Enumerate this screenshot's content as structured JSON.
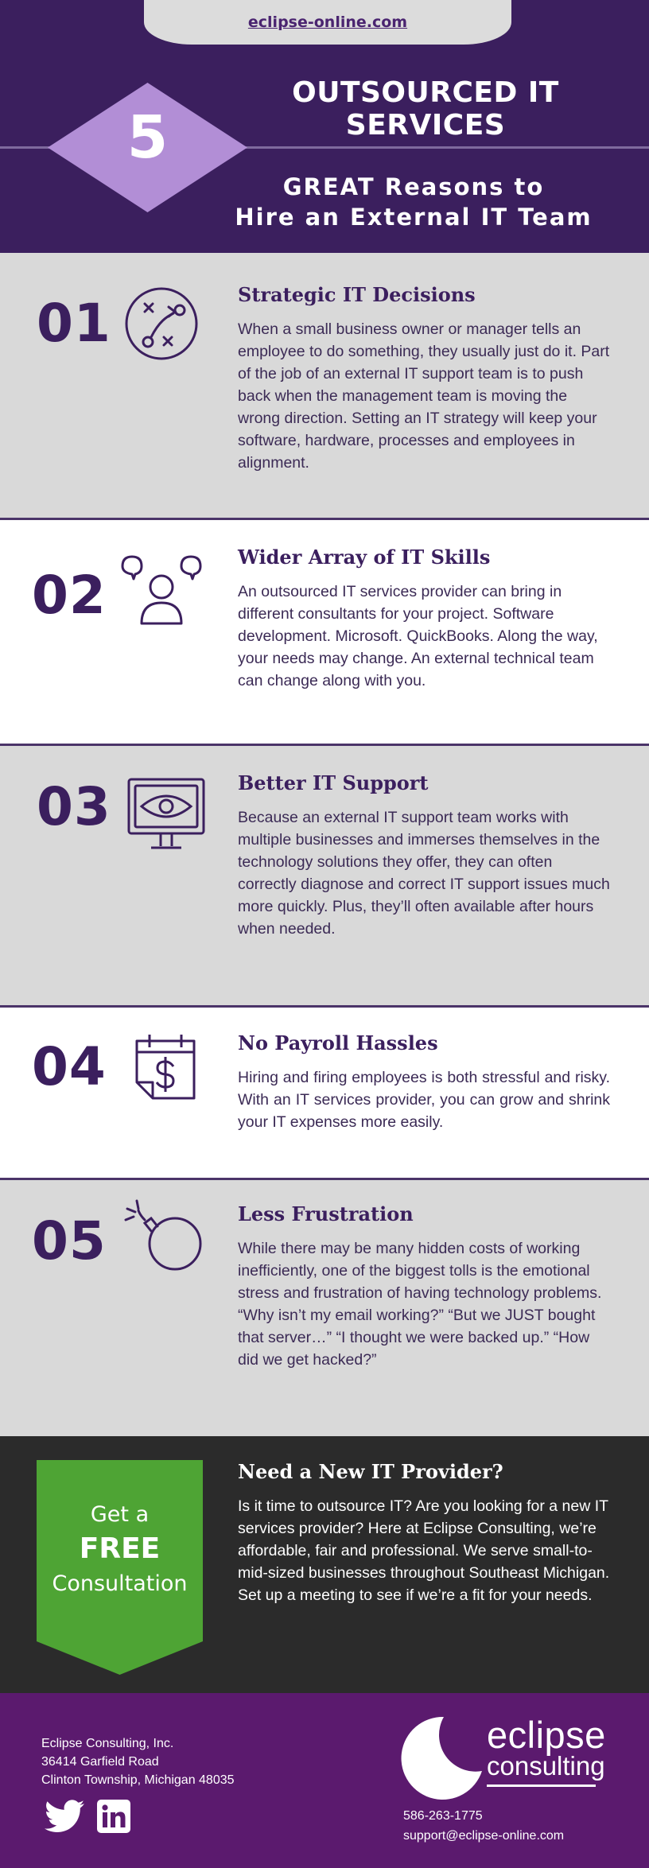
{
  "header": {
    "url": "eclipse-online.com",
    "number": "5",
    "title": "OUTSOURCED IT SERVICES",
    "subtitle_line1": "GREAT Reasons to",
    "subtitle_line2": "Hire an External IT Team",
    "colors": {
      "background": "#3b1f5e",
      "diamond": "#b28ed6",
      "tab": "#dcdcdc"
    }
  },
  "reasons": [
    {
      "number": "01",
      "icon": "strategy-play-icon",
      "title": "Strategic IT Decisions",
      "body": "When a small business owner or manager tells an employee to do something, they usually just do it. Part of the job of an external IT support team is to push back when the management team is moving the wrong direction. Setting an IT strategy will keep your software, hardware, processes and employees in alignment."
    },
    {
      "number": "02",
      "icon": "person-ideas-icon",
      "title": "Wider Array of IT Skills",
      "body": "An outsourced IT services provider can bring in different consultants for your project. Software development. Microsoft. QuickBooks. Along the way, your needs may change. An external technical team can change along with you."
    },
    {
      "number": "03",
      "icon": "monitor-eye-icon",
      "title": "Better IT Support",
      "body": "Because an external IT support team works with multiple businesses and immerses themselves in the technology solutions they offer, they can often correctly diagnose and correct IT support issues much more quickly. Plus, they’ll often available after hours when needed."
    },
    {
      "number": "04",
      "icon": "calendar-dollar-icon",
      "title": "No Payroll Hassles",
      "body": "Hiring and firing employees is both stressful and risky. With an IT services provider, you can grow and shrink your IT expenses more easily."
    },
    {
      "number": "05",
      "icon": "bomb-icon",
      "title": "Less Frustration",
      "body": "While there may be many hidden costs of working inefficiently, one of the biggest tolls is the emotional stress and frustration of having technology problems. “Why isn’t my email working?” “But we JUST bought that server…” “I thought we were backed up.” “How did we get hacked?”"
    }
  ],
  "cta": {
    "ribbon_line1": "Get a",
    "ribbon_line2": "FREE",
    "ribbon_line3": "Consultation",
    "title": "Need a New IT Provider?",
    "body": "Is it time to outsource IT? Are you looking for a new IT services provider? Here at Eclipse Consulting, we’re affordable, fair and professional. We serve small-to-mid-sized businesses throughout Southeast Michigan. Set up a meeting to see if we’re a fit for your needs.",
    "colors": {
      "ribbon": "#4ea434",
      "background": "#2b2b2b"
    }
  },
  "footer": {
    "company": "Eclipse Consulting, Inc.",
    "street": "36414 Garfield Road",
    "city": "Clinton Township, Michigan 48035",
    "logo_word1": "eclipse",
    "logo_word2": "consulting",
    "phone": "586-263-1775",
    "email": "support@eclipse-online.com",
    "social_icons": [
      "twitter-icon",
      "linkedin-icon"
    ],
    "colors": {
      "background": "#5b1a6e"
    }
  }
}
